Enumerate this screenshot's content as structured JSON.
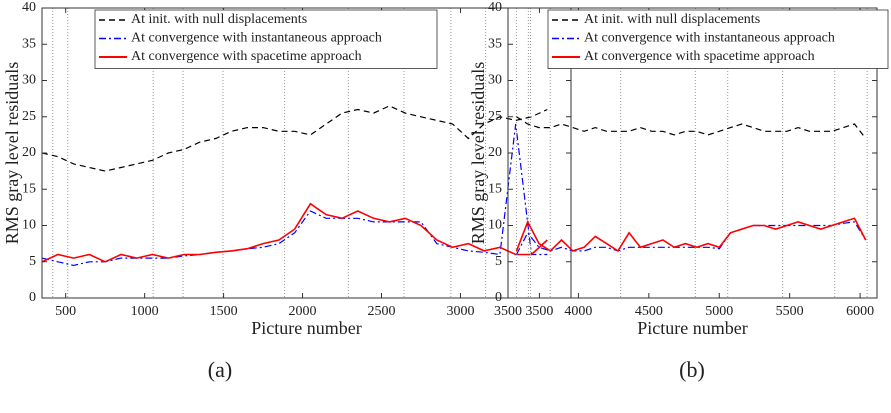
{
  "chart_data": [
    {
      "type": "line",
      "caption": "(a)",
      "xlabel": "Picture number",
      "ylabel": "RMS gray level residuals",
      "xlim": [
        350,
        3700
      ],
      "ylim": [
        0,
        40
      ],
      "xticks": [
        500,
        1000,
        1500,
        2000,
        2500,
        3000,
        3500
      ],
      "yticks": [
        0,
        5,
        10,
        15,
        20,
        25,
        30,
        35,
        40
      ],
      "vlines": [
        418,
        513,
        1054,
        1243,
        1496,
        1886,
        2290,
        2642,
        2939,
        3159,
        3430
      ],
      "x": [
        350,
        450,
        550,
        650,
        750,
        850,
        950,
        1050,
        1150,
        1250,
        1350,
        1450,
        1550,
        1650,
        1750,
        1850,
        1950,
        2050,
        2150,
        2250,
        2350,
        2450,
        2550,
        2650,
        2750,
        2850,
        2950,
        3050,
        3150,
        3250,
        3350,
        3450,
        3550
      ],
      "series": [
        {
          "name": "At init. with null displacements",
          "color": "#000000",
          "style": "dashed",
          "values": [
            20,
            19.5,
            18.5,
            18,
            17.5,
            18,
            18.5,
            19,
            20,
            20.5,
            21.5,
            22,
            23,
            23.5,
            23.5,
            23,
            23,
            22.5,
            24,
            25.5,
            26,
            25.5,
            26.5,
            25.5,
            25,
            24.5,
            24,
            22,
            24,
            25,
            24.5,
            25,
            26
          ]
        },
        {
          "name": "At convergence with instantaneous approach",
          "color": "#0000ff",
          "style": "dashdot",
          "values": [
            5.5,
            5,
            4.5,
            5,
            5,
            5.5,
            5.5,
            5.5,
            5.5,
            5.8,
            6,
            6.3,
            6.5,
            6.8,
            7,
            7.5,
            9,
            12,
            11,
            11,
            11,
            10.5,
            10.5,
            10.5,
            10.5,
            7.5,
            7,
            6.5,
            6.3,
            6,
            24,
            6,
            6
          ]
        },
        {
          "name": "At convergence with spacetime approach",
          "color": "#ff0000",
          "style": "solid",
          "values": [
            5,
            6,
            5.5,
            6,
            5,
            6,
            5.5,
            6,
            5.5,
            6,
            6,
            6.3,
            6.5,
            6.8,
            7.5,
            8,
            9.5,
            13,
            11.5,
            11,
            12,
            11,
            10.5,
            11,
            10,
            8,
            7,
            7.5,
            6.5,
            7,
            6,
            6,
            8
          ]
        }
      ]
    },
    {
      "type": "line",
      "caption": "(b)",
      "xlabel": "Picture number",
      "ylabel": "RMS gray level residuals",
      "xlim": [
        3500,
        6120
      ],
      "ylim": [
        0,
        40
      ],
      "xticks": [
        3500,
        4000,
        4500,
        5000,
        5500,
        6000
      ],
      "yticks": [
        0,
        5,
        10,
        15,
        20,
        25,
        30,
        35,
        40
      ],
      "vlines": [
        3560,
        3660,
        3800,
        4300,
        4830,
        5060,
        5450,
        5820,
        6050
      ],
      "x": [
        3560,
        3640,
        3720,
        3800,
        3880,
        3960,
        4040,
        4120,
        4200,
        4280,
        4360,
        4440,
        4520,
        4600,
        4680,
        4760,
        4840,
        4920,
        5000,
        5080,
        5160,
        5240,
        5320,
        5400,
        5480,
        5560,
        5640,
        5720,
        5800,
        5880,
        5960,
        6040
      ],
      "series": [
        {
          "name": "At init. with null displacements",
          "color": "#000000",
          "style": "dashed",
          "values": [
            25,
            24,
            23.5,
            23.5,
            24,
            23.5,
            23,
            23.5,
            23,
            23,
            23,
            23.5,
            23,
            23,
            22.5,
            23,
            23,
            22.5,
            23,
            23.5,
            24,
            23.5,
            23,
            23,
            23,
            23.5,
            23,
            23,
            23,
            23.5,
            24,
            22
          ]
        },
        {
          "name": "At convergence with instantaneous approach",
          "color": "#0000ff",
          "style": "dashdot",
          "values": [
            6,
            9,
            7,
            6.5,
            7,
            6.5,
            6.5,
            7,
            7,
            6.5,
            7,
            7,
            7,
            7,
            7,
            7,
            7,
            7,
            6.8,
            9,
            9.5,
            10,
            10,
            10,
            10,
            10,
            10,
            10,
            10,
            10.3,
            10.5,
            8
          ]
        },
        {
          "name": "At convergence with spacetime approach",
          "color": "#ff0000",
          "style": "solid",
          "values": [
            6.5,
            10.5,
            7.5,
            6.5,
            8,
            6.5,
            7,
            8.5,
            7.5,
            6.5,
            9,
            7,
            7.5,
            8,
            7,
            7.5,
            7,
            7.5,
            7,
            9,
            9.5,
            10,
            10,
            9.5,
            10,
            10.5,
            10,
            9.5,
            10,
            10.5,
            11,
            8
          ]
        }
      ]
    }
  ]
}
